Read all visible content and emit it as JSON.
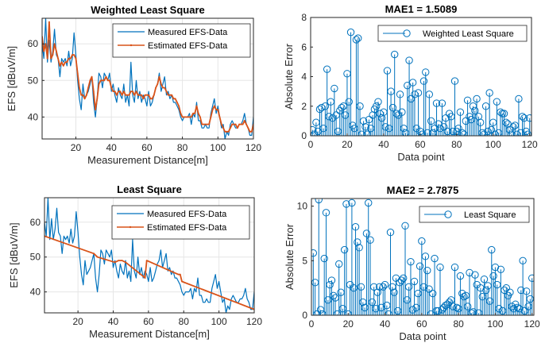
{
  "colors": {
    "measured": "#0072BD",
    "estimated": "#D95319",
    "stem": "#0072BD",
    "axis": "#262626",
    "grid": "#e6e6e6"
  },
  "chart_data": [
    {
      "id": "wls-fit",
      "type": "line",
      "title": "Weighted Least Square",
      "xlabel": "Measurement Distance[m]",
      "ylabel": "EFS [dBuV/m]",
      "xlim": [
        1,
        120
      ],
      "ylim": [
        34,
        67
      ],
      "xticks": [
        20,
        40,
        60,
        80,
        100,
        120
      ],
      "yticks": [
        40,
        50,
        60
      ],
      "grid": true,
      "legend": {
        "placement": "top-right",
        "entries": [
          "Measured EFS-Data",
          "Estimated EFS-Data"
        ]
      },
      "series": [
        {
          "name": "Measured EFS-Data",
          "x": [
            1,
            2,
            3,
            4,
            5,
            6,
            7,
            8,
            9,
            10,
            11,
            12,
            13,
            14,
            15,
            16,
            17,
            18,
            19,
            20,
            21,
            22,
            23,
            24,
            25,
            26,
            27,
            28,
            29,
            30,
            31,
            32,
            33,
            34,
            35,
            36,
            37,
            38,
            39,
            40,
            41,
            42,
            43,
            44,
            45,
            46,
            47,
            48,
            49,
            50,
            51,
            52,
            53,
            54,
            55,
            56,
            57,
            58,
            59,
            60,
            61,
            62,
            63,
            64,
            65,
            66,
            67,
            68,
            69,
            70,
            71,
            72,
            73,
            74,
            75,
            76,
            77,
            78,
            79,
            80,
            81,
            82,
            83,
            84,
            85,
            86,
            87,
            88,
            89,
            90,
            91,
            92,
            93,
            94,
            95,
            96,
            97,
            98,
            99,
            100,
            101,
            102,
            103,
            104,
            105,
            106,
            107,
            108,
            109,
            110,
            111,
            112,
            113,
            114,
            115,
            116,
            117,
            118,
            119,
            120
          ],
          "y": [
            60,
            56,
            67,
            55,
            61,
            55,
            58,
            64,
            57,
            56,
            51,
            56,
            55,
            56,
            54,
            58,
            54,
            56,
            63,
            57,
            50,
            45,
            42,
            49,
            45,
            46,
            47,
            49,
            51,
            44,
            40,
            45,
            52,
            51,
            48,
            52,
            51,
            50,
            52,
            47,
            49,
            46,
            44,
            48,
            46,
            45,
            49,
            44,
            46,
            43,
            55,
            46,
            44,
            50,
            45,
            47,
            44,
            46,
            45,
            43,
            47,
            43,
            44,
            46,
            48,
            49,
            52,
            47,
            49,
            51,
            46,
            47,
            45,
            46,
            44,
            44,
            43,
            42,
            40,
            39,
            40,
            40,
            40,
            41,
            38,
            41,
            40,
            44,
            39,
            39,
            37,
            37,
            38,
            37,
            37,
            41,
            43,
            45,
            41,
            43,
            40,
            37,
            38,
            34,
            36,
            35,
            38,
            39,
            38,
            37,
            37,
            38,
            38,
            39,
            41,
            38,
            37,
            35,
            35,
            40
          ]
        },
        {
          "name": "Estimated EFS-Data",
          "x": [
            1,
            2,
            3,
            4,
            5,
            6,
            7,
            8,
            9,
            10,
            11,
            12,
            13,
            14,
            15,
            16,
            17,
            18,
            19,
            20,
            21,
            22,
            23,
            24,
            25,
            26,
            27,
            28,
            29,
            30,
            31,
            32,
            33,
            34,
            35,
            36,
            37,
            38,
            39,
            40,
            41,
            42,
            43,
            44,
            45,
            46,
            47,
            48,
            49,
            50,
            51,
            52,
            53,
            54,
            55,
            56,
            57,
            58,
            59,
            60,
            61,
            62,
            63,
            64,
            65,
            66,
            67,
            68,
            69,
            70,
            71,
            72,
            73,
            74,
            75,
            76,
            77,
            78,
            79,
            80,
            81,
            82,
            83,
            84,
            85,
            86,
            87,
            88,
            89,
            90,
            91,
            92,
            93,
            94,
            95,
            96,
            97,
            98,
            99,
            100,
            101,
            102,
            103,
            104,
            105,
            106,
            107,
            108,
            109,
            110,
            111,
            112,
            113,
            114,
            115,
            116,
            117,
            118,
            119,
            120
          ],
          "y": [
            62,
            58,
            60,
            56,
            66,
            56,
            57,
            60,
            58,
            56,
            54,
            55,
            54,
            55,
            55,
            56,
            56,
            57,
            57,
            56,
            52,
            48,
            46,
            46,
            45,
            46,
            48,
            50,
            51,
            47,
            42,
            45,
            49,
            50,
            50,
            50,
            51,
            50,
            50,
            48,
            47,
            47,
            46,
            47,
            47,
            46,
            47,
            46,
            46,
            46,
            47,
            47,
            46,
            47,
            46,
            46,
            46,
            45,
            46,
            46,
            46,
            45,
            45,
            46,
            48,
            49,
            51,
            49,
            48,
            48,
            47,
            46,
            46,
            46,
            45,
            45,
            44,
            43,
            41,
            40,
            40,
            40,
            40,
            40,
            40,
            41,
            41,
            43,
            41,
            40,
            38,
            38,
            38,
            38,
            38,
            40,
            42,
            43,
            42,
            42,
            40,
            38,
            37,
            36,
            36,
            36,
            37,
            38,
            38,
            38,
            37,
            38,
            38,
            38,
            39,
            38,
            37,
            36,
            36,
            38
          ]
        }
      ]
    },
    {
      "id": "wls-error",
      "type": "stem",
      "title": "MAE1 = 1.5089",
      "xlabel": "Data point",
      "ylabel": "Absolute Error",
      "xlim": [
        0,
        121
      ],
      "ylim": [
        0,
        8
      ],
      "xticks": [
        0,
        20,
        40,
        60,
        80,
        100,
        120
      ],
      "yticks": [
        0,
        2,
        4,
        6,
        8
      ],
      "grid": false,
      "legend": {
        "placement": "top-right",
        "entries": [
          "Weighted Least Square"
        ]
      },
      "series": [
        {
          "name": "Weighted Least Square",
          "values": [
            0.4,
            0.1,
            0.9,
            0.3,
            1.8,
            1.9,
            0.5,
            2.0,
            4.5,
            1.3,
            2.3,
            1.2,
            3.2,
            1.4,
            0.3,
            1.7,
            1.9,
            2.0,
            1.4,
            4.2,
            2.3,
            7.0,
            0.7,
            0.5,
            6.5,
            6.6,
            2.0,
            0.1,
            1.0,
            0.6,
            0.1,
            1.1,
            0.5,
            1.4,
            1.8,
            2.0,
            2.3,
            1.5,
            1.2,
            1.6,
            0.6,
            4.4,
            0.5,
            3.0,
            1.9,
            5.5,
            1.5,
            1.4,
            2.8,
            1.6,
            0.5,
            0.2,
            3.4,
            5.1,
            2.5,
            3.6,
            2.8,
            0.5,
            2.9,
            0.3,
            0.1,
            3.7,
            4.3,
            0.2,
            2.8,
            1.0,
            0.2,
            0.5,
            2.2,
            0.8,
            0.5,
            2.2,
            0.6,
            1.2,
            0.3,
            1.5,
            1.3,
            0.3,
            3.7,
            0.3,
            0.5,
            1.6,
            0.2,
            0.1,
            1.0,
            2.4,
            1.3,
            1.1,
            2.0,
            1.7,
            2.5,
            1.3,
            0.9,
            0.2,
            0.1,
            2.0,
            0.3,
            2.9,
            0.4,
            0.9,
            0.1,
            2.3,
            0.2,
            1.6,
            1.5,
            1.5,
            0.9,
            0.8,
            0.4,
            0.1,
            0.6,
            0.7,
            0.1,
            2.5,
            0.2,
            1.3,
            1.2,
            0.3,
            0.1,
            1.2
          ]
        }
      ]
    },
    {
      "id": "ls-fit",
      "type": "line",
      "title": "Least Square",
      "xlabel": "Measurement Distance[m]",
      "ylabel": "EFS [dBuV/m]",
      "xlim": [
        1,
        120
      ],
      "ylim": [
        34,
        67
      ],
      "xticks": [
        20,
        40,
        60,
        80,
        100,
        120
      ],
      "yticks": [
        40,
        50,
        60
      ],
      "grid": true,
      "legend": {
        "placement": "top-right",
        "entries": [
          "Measured EFS-Data",
          "Estimated EFS-Data"
        ]
      },
      "series": [
        {
          "name": "Measured EFS-Data",
          "x": [
            1,
            2,
            3,
            4,
            5,
            6,
            7,
            8,
            9,
            10,
            11,
            12,
            13,
            14,
            15,
            16,
            17,
            18,
            19,
            20,
            21,
            22,
            23,
            24,
            25,
            26,
            27,
            28,
            29,
            30,
            31,
            32,
            33,
            34,
            35,
            36,
            37,
            38,
            39,
            40,
            41,
            42,
            43,
            44,
            45,
            46,
            47,
            48,
            49,
            50,
            51,
            52,
            53,
            54,
            55,
            56,
            57,
            58,
            59,
            60,
            61,
            62,
            63,
            64,
            65,
            66,
            67,
            68,
            69,
            70,
            71,
            72,
            73,
            74,
            75,
            76,
            77,
            78,
            79,
            80,
            81,
            82,
            83,
            84,
            85,
            86,
            87,
            88,
            89,
            90,
            91,
            92,
            93,
            94,
            95,
            96,
            97,
            98,
            99,
            100,
            101,
            102,
            103,
            104,
            105,
            106,
            107,
            108,
            109,
            110,
            111,
            112,
            113,
            114,
            115,
            116,
            117,
            118,
            119,
            120
          ],
          "y": [
            60,
            56,
            67,
            55,
            61,
            55,
            58,
            64,
            57,
            56,
            51,
            56,
            55,
            56,
            54,
            58,
            54,
            56,
            63,
            57,
            50,
            45,
            42,
            49,
            45,
            46,
            47,
            49,
            51,
            44,
            40,
            45,
            52,
            51,
            48,
            52,
            51,
            50,
            52,
            47,
            49,
            46,
            44,
            48,
            46,
            45,
            49,
            44,
            46,
            43,
            55,
            46,
            44,
            50,
            45,
            47,
            44,
            46,
            45,
            43,
            47,
            43,
            44,
            46,
            48,
            49,
            52,
            47,
            49,
            51,
            46,
            47,
            45,
            46,
            44,
            44,
            43,
            42,
            40,
            39,
            40,
            40,
            40,
            41,
            38,
            41,
            40,
            44,
            39,
            39,
            37,
            37,
            38,
            37,
            37,
            41,
            43,
            45,
            41,
            43,
            40,
            37,
            38,
            34,
            36,
            35,
            38,
            39,
            38,
            37,
            37,
            38,
            38,
            39,
            41,
            38,
            37,
            35,
            35,
            40
          ]
        },
        {
          "name": "Estimated EFS-Data",
          "x": [
            1,
            29,
            31,
            41,
            43,
            45,
            47,
            57,
            58,
            59,
            77,
            78,
            79,
            120
          ],
          "y": [
            56,
            51,
            50,
            48.5,
            49,
            49,
            48.5,
            44.5,
            44,
            49,
            45,
            45,
            43,
            35
          ]
        }
      ]
    },
    {
      "id": "ls-error",
      "type": "stem",
      "title": "MAE2 = 2.7875",
      "xlabel": "Data point",
      "ylabel": "Absolute Error",
      "xlim": [
        0,
        121
      ],
      "ylim": [
        0,
        10.7
      ],
      "xticks": [
        0,
        20,
        40,
        60,
        80,
        100,
        120
      ],
      "yticks": [
        0,
        5,
        10
      ],
      "grid": false,
      "legend": {
        "placement": "top-right",
        "entries": [
          "Least Square"
        ]
      },
      "series": [
        {
          "name": "Least Square",
          "values": [
            5.7,
            3.0,
            0.1,
            10.6,
            0.5,
            0.1,
            5.2,
            9.4,
            1.4,
            2.8,
            3.2,
            1.8,
            1.6,
            0.1,
            4.7,
            2.1,
            0.6,
            6.0,
            10.2,
            0.1,
            2.8,
            10.3,
            2.5,
            8.1,
            6.7,
            6.2,
            2.6,
            1.2,
            0.7,
            7.5,
            10.3,
            6.9,
            1.2,
            2.6,
            0.6,
            2.1,
            2.6,
            0.7,
            2.6,
            2.8,
            0.9,
            0.1,
            7.6,
            2.6,
            2.1,
            3.4,
            0.4,
            3.0,
            3.2,
            3.4,
            8.2,
            1.4,
            2.6,
            4.9,
            0.5,
            3.1,
            0.7,
            2.0,
            4.5,
            6.8,
            2.6,
            5.4,
            4.1,
            2.4,
            0.1,
            2.0,
            5.2,
            0.4,
            0.4,
            4.4,
            0.5,
            0.7,
            0.9,
            1.0,
            1.2,
            1.4,
            0.8,
            4.4,
            0.7,
            0.6,
            3.6,
            2.0,
            1.7,
            1.8,
            0.8,
            3.9,
            0.2,
            0.3,
            3.7,
            2.8,
            0.2,
            2.5,
            1.7,
            3.3,
            2.3,
            2.7,
            1.3,
            6.0,
            3.6,
            4.4,
            2.8,
            0.6,
            4.2,
            0.4,
            2.3,
            2.5,
            1.8,
            2.1,
            0.8,
            0.6,
            1.0,
            0.7,
            0.6,
            2.3,
            5.0,
            0.4,
            2.2,
            0.8,
            1.5,
            3.4
          ]
        }
      ]
    }
  ]
}
